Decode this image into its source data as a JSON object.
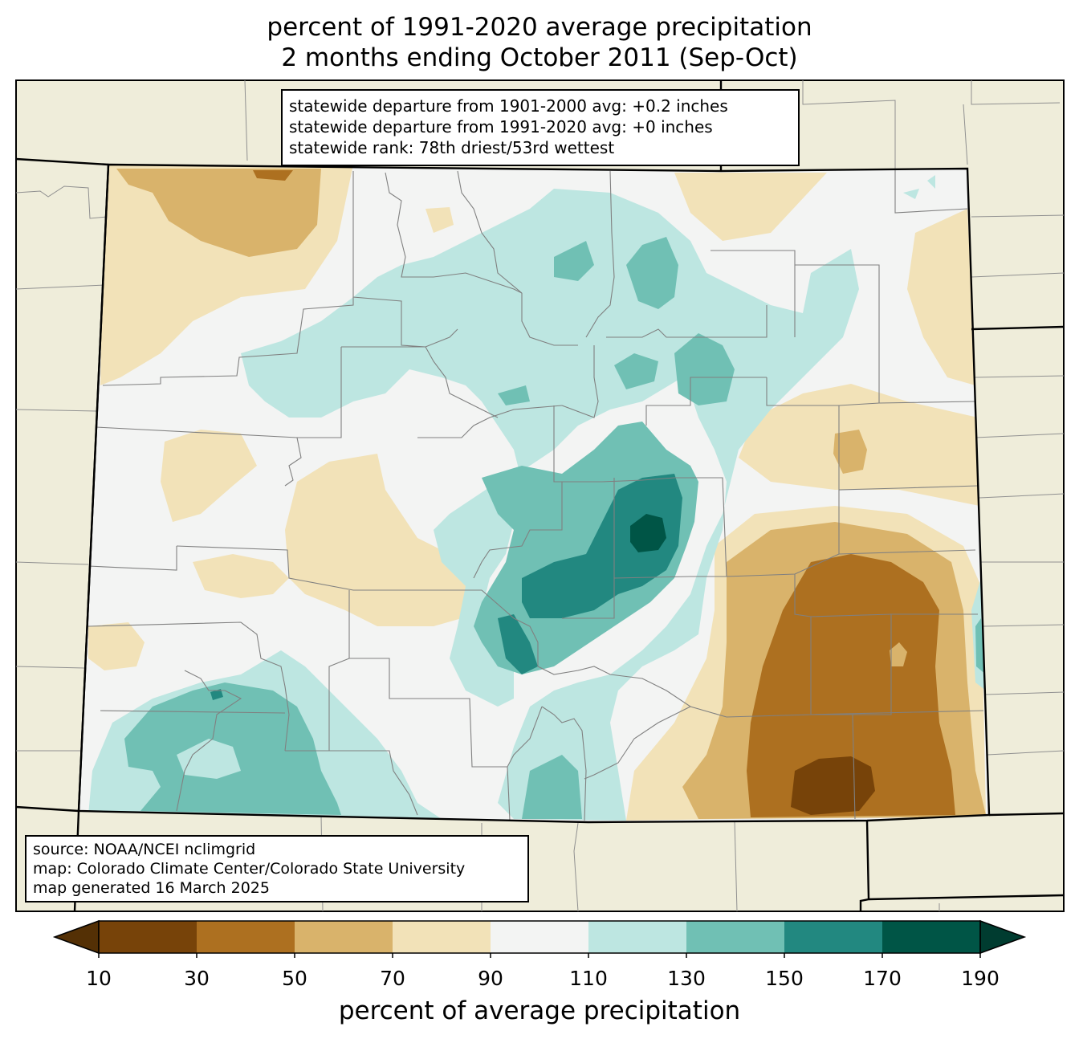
{
  "title": {
    "line1": "percent of 1991-2020 average precipitation",
    "line2": "2 months ending October 2011 (Sep-Oct)"
  },
  "stats_box": {
    "line1": "statewide departure from 1901-2000 avg: +0.2 inches",
    "line2": "statewide departure from 1991-2020 avg: +0 inches",
    "line3": "statewide rank: 78th driest/53rd wettest"
  },
  "source_box": {
    "line1": "source: NOAA/NCEI nclimgrid",
    "line2": "map: Colorado Climate Center/Colorado State University",
    "line3": "map generated 16 March 2025"
  },
  "colorbar": {
    "label": "percent of average precipitation",
    "ticks": [
      "10",
      "30",
      "50",
      "70",
      "90",
      "110",
      "130",
      "150",
      "170",
      "190"
    ],
    "under_color": "#543005",
    "over_color": "#003c30",
    "bins": [
      {
        "range": "10-30",
        "color": "#774309"
      },
      {
        "range": "30-50",
        "color": "#ad7020"
      },
      {
        "range": "50-70",
        "color": "#d9b36b"
      },
      {
        "range": "70-90",
        "color": "#f2e2b8"
      },
      {
        "range": "90-110",
        "color": "#f3f4f3"
      },
      {
        "range": "110-130",
        "color": "#bde6e1"
      },
      {
        "range": "130-150",
        "color": "#70c0b4"
      },
      {
        "range": "150-170",
        "color": "#228880"
      },
      {
        "range": "170-190",
        "color": "#005546"
      }
    ]
  },
  "colors": {
    "background_land": "#efedda",
    "state_border": "#000000",
    "county_border": "#808080"
  }
}
